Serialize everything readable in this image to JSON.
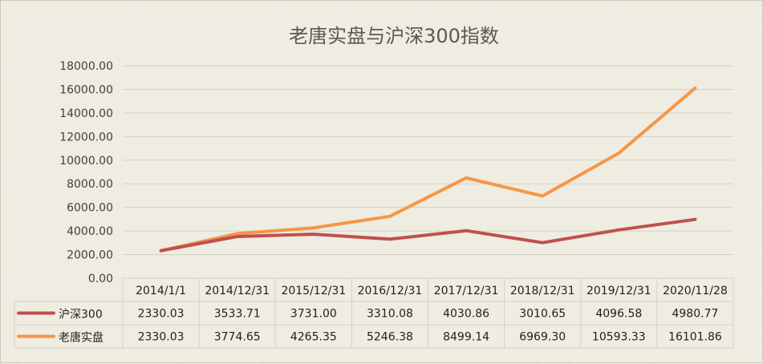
{
  "chart_data": {
    "type": "line",
    "title": "老唐实盘与沪深300指数",
    "categories": [
      "2014/1/1",
      "2014/12/31",
      "2015/12/31",
      "2016/12/31",
      "2017/12/31",
      "2018/12/31",
      "2019/12/31",
      "2020/11/28"
    ],
    "series": [
      {
        "name": "沪深300",
        "color": "#c0504d",
        "values": [
          2330.03,
          3533.71,
          3731.0,
          3310.08,
          4030.86,
          3010.65,
          4096.58,
          4980.77
        ],
        "labels": [
          "2330.03",
          "3533.71",
          "3731.00",
          "3310.08",
          "4030.86",
          "3010.65",
          "4096.58",
          "4980.77"
        ]
      },
      {
        "name": "老唐实盘",
        "color": "#f79646",
        "values": [
          2330.03,
          3774.65,
          4265.35,
          5246.38,
          8499.14,
          6969.3,
          10593.33,
          16101.86
        ],
        "labels": [
          "2330.03",
          "3774.65",
          "4265.35",
          "5246.38",
          "8499.14",
          "6969.30",
          "10593.33",
          "16101.86"
        ]
      }
    ],
    "ylim": [
      0,
      18000
    ],
    "ytick_labels": [
      "0.00",
      "2000.00",
      "4000.00",
      "6000.00",
      "8000.00",
      "10000.00",
      "12000.00",
      "14000.00",
      "16000.00",
      "18000.00"
    ],
    "grid": true,
    "legend": "data-table"
  }
}
